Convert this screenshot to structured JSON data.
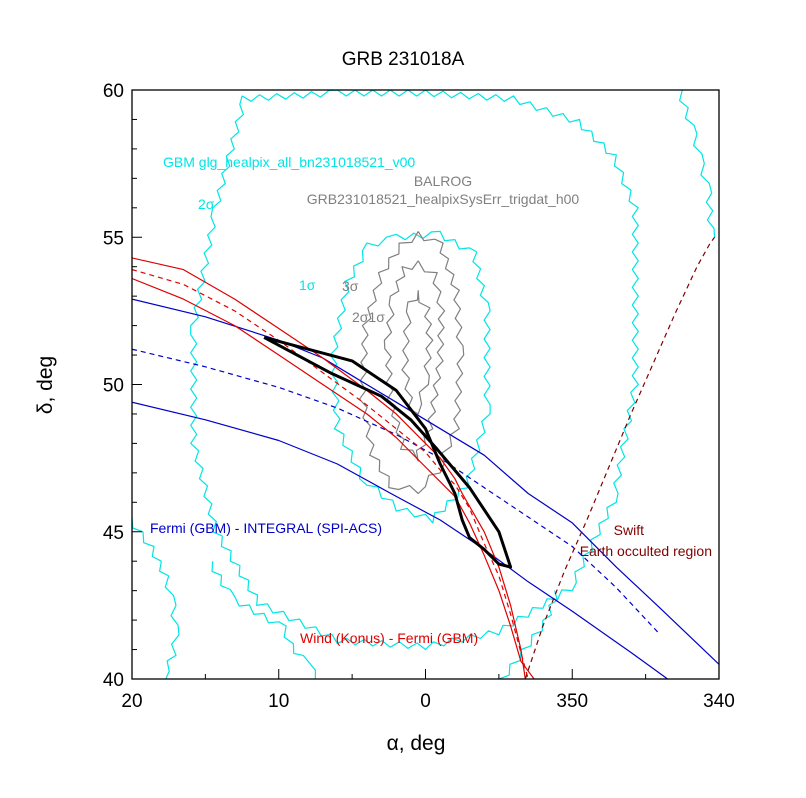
{
  "chart_data": {
    "type": "line",
    "title": "GRB 231018A",
    "xlabel": "α, deg",
    "ylabel": "δ, deg",
    "x_axis": {
      "min": 340,
      "max": 380,
      "reversed": true,
      "ticks": [
        {
          "value": 380,
          "label": "20"
        },
        {
          "value": 370,
          "label": "10"
        },
        {
          "value": 360,
          "label": "0"
        },
        {
          "value": 350,
          "label": "350"
        },
        {
          "value": 340,
          "label": "340"
        }
      ]
    },
    "y_axis": {
      "min": 40,
      "max": 60,
      "ticks": [
        {
          "value": 40,
          "label": "40"
        },
        {
          "value": 45,
          "label": "45"
        },
        {
          "value": 50,
          "label": "50"
        },
        {
          "value": 55,
          "label": "55"
        },
        {
          "value": 60,
          "label": "60"
        }
      ]
    },
    "grid": false,
    "colors": {
      "gbm": "#00e5e5",
      "balrog": "#808080",
      "ipn_fermi_integral": "#0000c8",
      "ipn_wind_fermi": "#e00000",
      "swift": "#800000",
      "box": "#000000"
    },
    "annotations": [
      {
        "text": "GBM glg_healpix_all_bn231018521_v00",
        "color": "#00e5e5"
      },
      {
        "text": "BALROG",
        "color": "#808080"
      },
      {
        "text": "GRB231018521_healpixSysErr_trigdat_h00",
        "color": "#808080"
      },
      {
        "text": "2σ",
        "color": "#00e5e5"
      },
      {
        "text": "1σ",
        "color": "#00e5e5"
      },
      {
        "text": "3σ",
        "color": "#808080"
      },
      {
        "text": "2σ1σ",
        "color": "#808080"
      },
      {
        "text": "Fermi (GBM) - INTEGRAL (SPI-ACS)",
        "color": "#0000c8"
      },
      {
        "text": "Wind (Konus) - Fermi (GBM)",
        "color": "#e00000"
      },
      {
        "text": "Swift",
        "color": "#800000"
      },
      {
        "text": "Earth occulted region",
        "color": "#800000"
      }
    ],
    "series": [
      {
        "key": "gbm_2sigma",
        "style": "jagged",
        "color": "#00e5e5",
        "x": [
          372.5,
          366,
          360,
          354,
          349.5,
          347,
          345.5,
          345.5,
          347,
          350,
          355,
          360,
          366,
          371.5,
          374.5,
          376,
          376,
          374.5,
          372.5
        ],
        "y": [
          59.8,
          60,
          60,
          59.8,
          59,
          57.8,
          56,
          50,
          46,
          43,
          41.5,
          41,
          41.2,
          42.5,
          45,
          48,
          52,
          56,
          59.8
        ]
      },
      {
        "key": "gbm_outer",
        "style": "jagged",
        "color": "#00e5e5",
        "x": [
          374.5,
          373,
          369.5,
          369,
          368,
          367.5,
          367.5
        ],
        "y": [
          44,
          42.8,
          41.8,
          41.2,
          40.6,
          40.3,
          40
        ]
      },
      {
        "key": "gbm_outer_right",
        "style": "jagged",
        "color": "#00e5e5",
        "x": [
          342.5,
          341.5,
          341,
          340.5,
          340.3
        ],
        "y": [
          60,
          58.5,
          57.5,
          56.5,
          55
        ]
      },
      {
        "key": "gbm_outer_bottom_right",
        "style": "jagged",
        "color": "#00e5e5",
        "x": [
          355,
          353.5,
          352,
          351.2
        ],
        "y": [
          40,
          41,
          42,
          43
        ]
      },
      {
        "key": "gbm_outer_left",
        "style": "jagged",
        "color": "#00e5e5",
        "x": [
          380,
          378.5,
          377.5,
          377,
          376.8,
          377,
          377.7
        ],
        "y": [
          45.5,
          44.5,
          43.5,
          42.5,
          41.5,
          40.8,
          40
        ]
      },
      {
        "key": "gbm_1sigma",
        "style": "jagged",
        "color": "#00e5e5",
        "x": [
          362,
          359,
          356.5,
          355.6,
          355.6,
          357,
          359.5,
          362,
          364.5,
          366.2,
          366.5,
          365.5,
          364,
          362
        ],
        "y": [
          55.1,
          55.2,
          54.5,
          52.5,
          49,
          46.5,
          45.3,
          45.7,
          46.8,
          48.5,
          51,
          53.5,
          54.8,
          55.1
        ]
      },
      {
        "key": "balrog_3sigma",
        "style": "jagged",
        "color": "#808080",
        "x": [
          360.5,
          358.8,
          357.7,
          357.4,
          357.7,
          359,
          360.5,
          362.5,
          363.8,
          364.5,
          364.3,
          363.2,
          361.8,
          360.5
        ],
        "y": [
          55.2,
          54.8,
          53.2,
          51,
          48.5,
          47,
          46.3,
          46.5,
          47.6,
          49.5,
          52,
          53.8,
          54.8,
          55.2
        ]
      },
      {
        "key": "balrog_2sigma",
        "style": "jagged",
        "color": "#808080",
        "x": [
          360.5,
          359.2,
          358.7,
          358.8,
          359.5,
          360.5,
          361.7,
          362.6,
          362.8,
          362.4,
          361.6,
          360.5
        ],
        "y": [
          54.2,
          53.8,
          52.5,
          50.8,
          48.5,
          47.4,
          47.8,
          49.5,
          51.5,
          53,
          54,
          54.2
        ]
      },
      {
        "key": "balrog_1sigma",
        "style": "jagged",
        "color": "#808080",
        "x": [
          360.5,
          359.7,
          359.5,
          359.8,
          360.5,
          361.2,
          361.6,
          361.5,
          361.2,
          360.5
        ],
        "y": [
          53.2,
          52.6,
          51.5,
          50,
          49,
          49.2,
          50.5,
          51.8,
          52.8,
          53.2
        ]
      },
      {
        "key": "fermi_integral_upper",
        "style": "solid",
        "color": "#0000c8",
        "x": [
          380,
          375,
          370,
          367,
          365,
          362,
          359,
          356,
          353,
          350,
          347,
          344,
          340
        ],
        "y": [
          52.9,
          52.3,
          51.5,
          50.9,
          50.3,
          49.4,
          48.5,
          47.6,
          46.3,
          45.3,
          43.8,
          42.4,
          40.5
        ]
      },
      {
        "key": "fermi_integral_center",
        "style": "dashed",
        "color": "#0000c8",
        "x": [
          380,
          375,
          370,
          366,
          362,
          359,
          356,
          353,
          350,
          347,
          344
        ],
        "y": [
          51.2,
          50.6,
          49.9,
          49.2,
          48.3,
          47.5,
          46.5,
          45.5,
          44.5,
          43.1,
          41.5
        ]
      },
      {
        "key": "fermi_integral_lower",
        "style": "solid",
        "color": "#0000c8",
        "x": [
          380,
          375,
          370,
          366,
          362,
          359,
          356,
          353,
          350,
          346,
          343.5
        ],
        "y": [
          49.4,
          48.8,
          48.1,
          47.3,
          46.2,
          45.4,
          44.4,
          43.3,
          42.3,
          40.9,
          40
        ]
      },
      {
        "key": "wind_fermi_outer",
        "style": "solid",
        "color": "#e00000",
        "x": [
          380,
          376.5,
          373,
          370,
          367,
          364,
          362,
          360,
          359,
          358,
          357.5,
          356,
          355,
          354.2,
          353.5,
          353.2
        ],
        "y": [
          54.3,
          53.9,
          52.9,
          51.9,
          50.9,
          49.8,
          49,
          48,
          47.5,
          46.8,
          46.3,
          45,
          43.8,
          42.5,
          41,
          40
        ]
      },
      {
        "key": "wind_fermi_center",
        "style": "dashed",
        "color": "#e00000",
        "x": [
          380,
          376.5,
          373,
          370,
          367,
          364,
          362,
          360,
          359,
          358,
          357,
          356,
          355,
          354.2,
          353.5,
          353
        ],
        "y": [
          53.9,
          53.4,
          52.5,
          51.5,
          50.4,
          49.3,
          48.5,
          47.7,
          47.1,
          46.6,
          45.8,
          44.6,
          43.5,
          42.2,
          40.9,
          40
        ]
      },
      {
        "key": "wind_fermi_inner",
        "style": "solid",
        "color": "#e00000",
        "x": [
          380,
          376.5,
          373,
          370,
          367,
          364,
          362,
          360,
          359,
          358,
          357,
          356,
          355,
          354.2,
          353.5,
          352.6
        ],
        "y": [
          53.6,
          52.9,
          52,
          51,
          50,
          49,
          48.2,
          47.2,
          46.7,
          46.2,
          45.3,
          44.2,
          43,
          41.8,
          40.6,
          40
        ]
      },
      {
        "key": "swift_earth_occulted",
        "style": "dashed",
        "color": "#800000",
        "x": [
          353.2,
          352,
          350.5,
          349,
          347.5,
          346,
          344.5,
          343,
          341.5,
          340.6,
          340.3
        ],
        "y": [
          40,
          41.8,
          43.7,
          45.4,
          47.2,
          49,
          50.7,
          52.4,
          54,
          54.8,
          55
        ]
      },
      {
        "key": "ipn_box",
        "style": "bold",
        "color": "#000000",
        "x": [
          371,
          365,
          362,
          360,
          359,
          358,
          357.5,
          357,
          356,
          355,
          354.2,
          355,
          357,
          359.2,
          361,
          363,
          366.5,
          371
        ],
        "y": [
          51.6,
          50.8,
          49.8,
          48.5,
          47.3,
          46.3,
          45.4,
          44.8,
          44.4,
          43.9,
          43.8,
          45,
          46.5,
          47.8,
          48.8,
          49.6,
          50.4,
          51.6
        ]
      }
    ]
  }
}
